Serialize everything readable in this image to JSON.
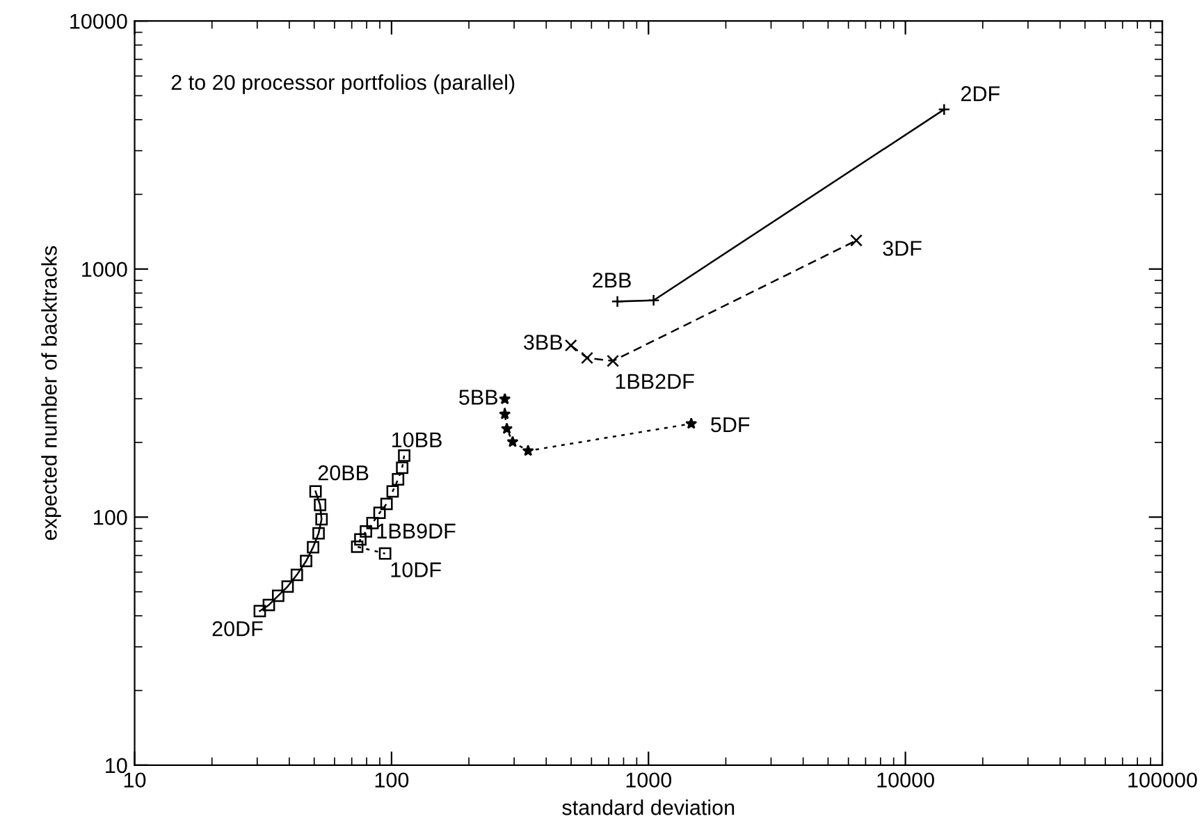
{
  "chart_data": {
    "type": "line",
    "xlabel": "standard deviation",
    "ylabel": "expected number of backtracks",
    "log": "xy",
    "grid": false,
    "xlim": [
      10,
      100000
    ],
    "xticks": [
      10,
      100,
      1000,
      10000,
      100000
    ],
    "ylim": [
      10,
      10000
    ],
    "yticks": [
      10,
      100,
      1000,
      10000
    ],
    "series": [
      {
        "color": "#000000",
        "marker": "cross",
        "line_style": "solid",
        "x": [
          757,
          1047,
          14150
        ],
        "values": [
          740,
          748,
          4400
        ]
      },
      {
        "color": "#000000",
        "marker": "x",
        "line_style": "dashed",
        "x": [
          499,
          577,
          727,
          6440
        ],
        "values": [
          492,
          438,
          426,
          1304
        ]
      },
      {
        "color": "#000000",
        "marker": "star",
        "line_style": "dotted",
        "x": [
          276,
          276,
          281,
          296,
          340,
          1467
        ],
        "values": [
          299,
          260,
          227,
          201,
          185,
          238
        ]
      },
      {
        "color": "#000000",
        "marker": "square",
        "line_style": "dotted",
        "x": [
          112,
          110,
          106,
          101,
          95.6,
          89.8,
          84.3,
          79.5,
          75.6,
          73.5,
          94.4
        ],
        "values": [
          177,
          158,
          142,
          127,
          113,
          104,
          94.6,
          87.5,
          81.3,
          76.0,
          71.3
        ]
      },
      {
        "color": "#000000",
        "marker": "square",
        "line_style": "solid",
        "x": [
          50.6,
          52.7,
          53.4,
          52.0,
          49.5,
          46.5,
          42.8,
          39.4,
          36.2,
          33.3,
          30.7
        ],
        "values": [
          127,
          112,
          98,
          86,
          75.6,
          66.5,
          58.5,
          52.5,
          48.2,
          44.2,
          41.8
        ]
      }
    ],
    "annotations": [
      "2 to 20 processor portfolios (parallel)",
      {
        "text": "2BB",
        "x": 757,
        "y": 740
      },
      {
        "text": "2DF",
        "x": 14150,
        "y": 4400
      },
      {
        "text": "3BB",
        "x": 499,
        "y": 492
      },
      {
        "text": "1BB2DF",
        "x": 727,
        "y": 426
      },
      {
        "text": "3DF",
        "x": 6440,
        "y": 1304
      },
      {
        "text": "5BB",
        "x": 276,
        "y": 299
      },
      {
        "text": "5DF",
        "x": 1467,
        "y": 238
      },
      {
        "text": "10BB",
        "x": 112,
        "y": 177
      },
      {
        "text": "1BB9DF",
        "x": 79.5,
        "y": 87.5
      },
      {
        "text": "10DF",
        "x": 94.4,
        "y": 71.3
      },
      {
        "text": "20BB",
        "x": 50.6,
        "y": 127
      },
      {
        "text": "20DF",
        "x": 30.7,
        "y": 41.8
      }
    ]
  }
}
